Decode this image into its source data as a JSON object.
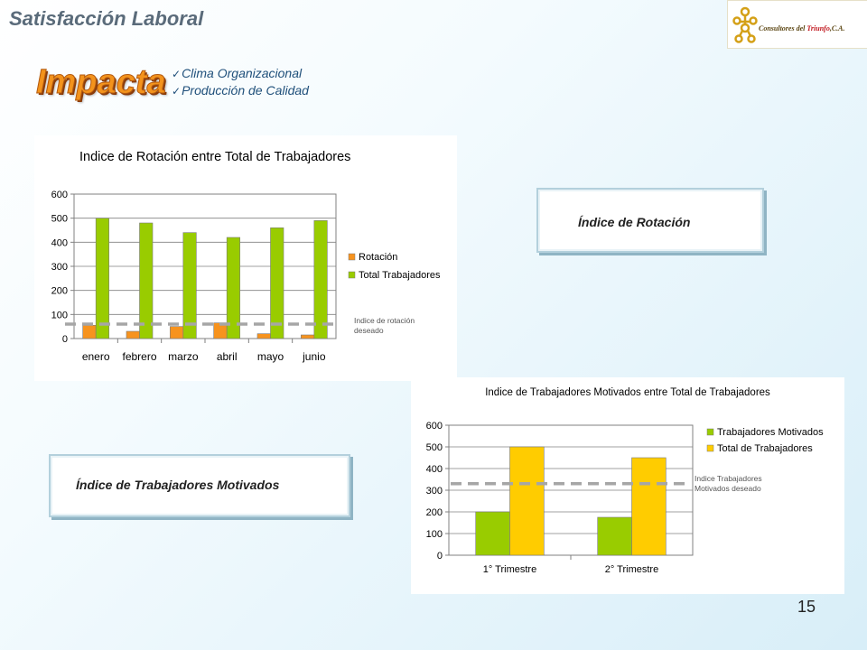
{
  "header": {
    "title": "Satisfacción Laboral",
    "logo_text": "Consultores del ",
    "logo_highlight": "Triunfo",
    "logo_suffix": ",C.A."
  },
  "impacta": {
    "word": "Impacta",
    "bullets": [
      "Clima Organizacional",
      "Producción de Calidad"
    ]
  },
  "boxes": {
    "rotacion": "Índice de Rotación",
    "motivados": "Índice de Trabajadores Motivados"
  },
  "page_number": "15",
  "colors": {
    "orange": "#f7931e",
    "green": "#99cc00",
    "yellow": "#ffcc00",
    "dashed": "#a6a6a6",
    "title_text": "#5a6b7a",
    "wordart": "#f3931c"
  },
  "chart_data": [
    {
      "type": "bar",
      "title": "Indice de Rotación entre Total de Trabajadores",
      "categories": [
        "enero",
        "febrero",
        "marzo",
        "abril",
        "mayo",
        "junio"
      ],
      "series": [
        {
          "name": "Rotación",
          "color": "#f7931e",
          "values": [
            55,
            30,
            50,
            65,
            20,
            15
          ]
        },
        {
          "name": "Total Trabajadores",
          "color": "#99cc00",
          "values": [
            500,
            480,
            440,
            420,
            460,
            490
          ]
        }
      ],
      "ylim": [
        0,
        600
      ],
      "yticks": [
        0,
        100,
        200,
        300,
        400,
        500,
        600
      ],
      "reference_line": {
        "value": 60,
        "label": [
          "Indice de rotación",
          "deseado"
        ]
      },
      "legend_position": "right"
    },
    {
      "type": "bar",
      "title": "Indice de Trabajadores Motivados entre Total  de Trabajadores",
      "categories": [
        "1° Trimestre",
        "2° Trimestre"
      ],
      "series": [
        {
          "name": "Trabajadores Motivados",
          "color": "#99cc00",
          "values": [
            200,
            175
          ]
        },
        {
          "name": "Total de Trabajadores",
          "color": "#ffcc00",
          "values": [
            500,
            450
          ]
        }
      ],
      "ylim": [
        0,
        600
      ],
      "yticks": [
        0,
        100,
        200,
        300,
        400,
        500,
        600
      ],
      "reference_line": {
        "value": 330,
        "label": [
          "Indice Trabajadores",
          "Motivados deseado"
        ]
      },
      "legend_position": "right"
    }
  ]
}
